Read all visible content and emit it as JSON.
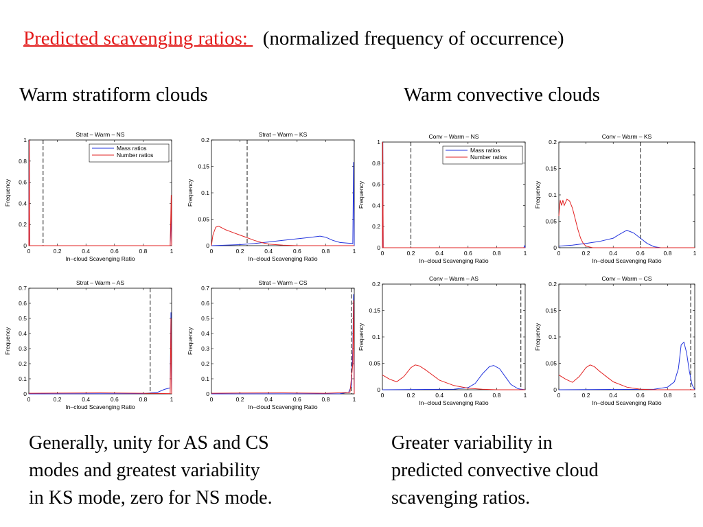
{
  "slide": {
    "title_red": "Predicted scavenging ratios: ",
    "title_rest": "(normalized frequency of occurrence)",
    "left_heading": "Warm stratiform clouds",
    "right_heading": "Warm convective clouds",
    "left_caption": [
      "Generally, unity for AS and CS",
      "modes and greatest variability",
      "in KS mode, zero for NS mode."
    ],
    "right_caption": [
      "Greater variability in",
      "predicted convective cloud",
      "scavenging ratios."
    ]
  },
  "colors": {
    "mass": "#2233dd",
    "number": "#e22222",
    "title_red": "#e31b1b"
  },
  "chart_data": [
    {
      "type": "line",
      "title": "Strat – Warm – NS",
      "xlabel": "In–cloud Scavenging Ratio",
      "ylabel": "Frequency",
      "xlim": [
        0,
        1
      ],
      "ylim": [
        0,
        1
      ],
      "xticks": [
        0,
        0.2,
        0.4,
        0.6,
        0.8,
        1
      ],
      "xtick_labels": [
        "0",
        "0.2",
        "0.4",
        "0.6",
        "0.8",
        "1"
      ],
      "yticks": [
        0,
        0.2,
        0.4,
        0.6,
        0.8,
        1
      ],
      "ytick_labels": [
        "0",
        "0.2",
        "0.4",
        "0.6",
        "0.8",
        "1"
      ],
      "threshold": 0.1,
      "legend": {
        "position": "top-right",
        "entries": [
          "Mass ratios",
          "Number ratios"
        ]
      },
      "series": [
        {
          "name": "Mass ratios",
          "x": [
            0,
            0.003,
            0.006,
            0.5,
            0.99,
            0.997,
            1
          ],
          "y": [
            0,
            1,
            0,
            0,
            0,
            0.3,
            0
          ]
        },
        {
          "name": "Number ratios",
          "x": [
            0,
            0.003,
            0.006,
            0.5,
            0.99,
            0.997,
            1
          ],
          "y": [
            0,
            1,
            0,
            0,
            0,
            0.48,
            0
          ]
        }
      ]
    },
    {
      "type": "line",
      "title": "Strat – Warm – KS",
      "xlabel": "In–cloud Scavenging Ratio",
      "ylabel": "Frequency",
      "xlim": [
        0,
        1
      ],
      "ylim": [
        0,
        0.2
      ],
      "xticks": [
        0,
        0.2,
        0.4,
        0.6,
        0.8,
        1
      ],
      "xtick_labels": [
        "0",
        "0.2",
        "0.4",
        "0.6",
        "0.8",
        "1"
      ],
      "yticks": [
        0,
        0.05,
        0.1,
        0.15,
        0.2
      ],
      "ytick_labels": [
        "0",
        "0.05",
        "0.1",
        "0.15",
        "0.2"
      ],
      "threshold": 0.25,
      "legend": null,
      "series": [
        {
          "name": "Mass ratios",
          "x": [
            0,
            0.1,
            0.2,
            0.3,
            0.4,
            0.5,
            0.6,
            0.7,
            0.76,
            0.8,
            0.85,
            0.9,
            0.95,
            0.99,
            0.995,
            1
          ],
          "y": [
            0,
            0.001,
            0.002,
            0.004,
            0.007,
            0.01,
            0.013,
            0.016,
            0.018,
            0.016,
            0.01,
            0.006,
            0.005,
            0.004,
            0.158,
            0
          ]
        },
        {
          "name": "Number ratios",
          "x": [
            0,
            0.01,
            0.03,
            0.05,
            0.1,
            0.15,
            0.2,
            0.25,
            0.3,
            0.35,
            0.4,
            0.5,
            0.6,
            1
          ],
          "y": [
            0,
            0.02,
            0.035,
            0.037,
            0.03,
            0.025,
            0.02,
            0.015,
            0.01,
            0.006,
            0.003,
            0.001,
            0,
            0
          ]
        }
      ]
    },
    {
      "type": "line",
      "title": "Strat – Warm – AS",
      "xlabel": "In–cloud Scavenging Ratio",
      "ylabel": "Frequency",
      "xlim": [
        0,
        1
      ],
      "ylim": [
        0,
        0.7
      ],
      "xticks": [
        0,
        0.2,
        0.4,
        0.6,
        0.8,
        1
      ],
      "xtick_labels": [
        "0",
        "0.2",
        "0.4",
        "0.6",
        "0.8",
        "1"
      ],
      "yticks": [
        0,
        0.1,
        0.2,
        0.3,
        0.4,
        0.5,
        0.6,
        0.7
      ],
      "ytick_labels": [
        "0",
        "0.1",
        "0.2",
        "0.3",
        "0.4",
        "0.5",
        "0.6",
        "0.7"
      ],
      "threshold": 0.85,
      "legend": null,
      "series": [
        {
          "name": "Mass ratios",
          "x": [
            0,
            0.8,
            0.9,
            0.95,
            0.99,
            0.995,
            1
          ],
          "y": [
            0,
            0.002,
            0.01,
            0.03,
            0.04,
            0.54,
            0
          ]
        },
        {
          "name": "Number ratios",
          "x": [
            0,
            0.2,
            0.5,
            0.8,
            0.99,
            0.995,
            1
          ],
          "y": [
            0.004,
            0.005,
            0.007,
            0.004,
            0.002,
            0.5,
            0
          ]
        }
      ]
    },
    {
      "type": "line",
      "title": "Strat – Warm – CS",
      "xlabel": "In–cloud Scavenging Ratio",
      "ylabel": "Frequency",
      "xlim": [
        0,
        1
      ],
      "ylim": [
        0,
        0.7
      ],
      "xticks": [
        0,
        0.2,
        0.4,
        0.6,
        0.8,
        1
      ],
      "xtick_labels": [
        "0",
        "0.2",
        "0.4",
        "0.6",
        "0.8",
        "1"
      ],
      "yticks": [
        0,
        0.1,
        0.2,
        0.3,
        0.4,
        0.5,
        0.6,
        0.7
      ],
      "ytick_labels": [
        "0",
        "0.1",
        "0.2",
        "0.3",
        "0.4",
        "0.5",
        "0.6",
        "0.7"
      ],
      "threshold": 0.98,
      "legend": null,
      "series": [
        {
          "name": "Mass ratios",
          "x": [
            0,
            0.9,
            0.96,
            0.98,
            0.99,
            0.995,
            1
          ],
          "y": [
            0,
            0.001,
            0.01,
            0.05,
            0.3,
            0.66,
            0
          ]
        },
        {
          "name": "Number ratios",
          "x": [
            0,
            0.2,
            0.5,
            0.8,
            0.97,
            0.99,
            0.995,
            1
          ],
          "y": [
            0.004,
            0.006,
            0.007,
            0.004,
            0.01,
            0.2,
            0.62,
            0
          ]
        }
      ]
    },
    {
      "type": "line",
      "title": "Conv – Warm – NS",
      "xlabel": "In–cloud Scavenging Ratio",
      "ylabel": "Frequency",
      "xlim": [
        0,
        1
      ],
      "ylim": [
        0,
        1
      ],
      "xticks": [
        0,
        0.2,
        0.4,
        0.6,
        0.8,
        1
      ],
      "xtick_labels": [
        "0",
        "0.2",
        "0.4",
        "0.6",
        "0.8",
        "1"
      ],
      "yticks": [
        0,
        0.2,
        0.4,
        0.6,
        0.8,
        1
      ],
      "ytick_labels": [
        "0",
        "0.2",
        "0.4",
        "0.6",
        "0.8",
        "1"
      ],
      "threshold": 0.2,
      "legend": {
        "position": "top-right",
        "entries": [
          "Mass ratios",
          "Number ratios"
        ]
      },
      "series": [
        {
          "name": "Mass ratios",
          "x": [
            0,
            0.003,
            0.006,
            0.5,
            0.99,
            0.997,
            1
          ],
          "y": [
            0,
            1,
            0,
            0,
            0,
            0.02,
            0
          ]
        },
        {
          "name": "Number ratios",
          "x": [
            0,
            0.003,
            0.006,
            0.5,
            1
          ],
          "y": [
            0,
            1,
            0,
            0,
            0
          ]
        }
      ]
    },
    {
      "type": "line",
      "title": "Conv – Warm – KS",
      "xlabel": "In–cloud Scavenging Ratio",
      "ylabel": "Frequency",
      "xlim": [
        0,
        1
      ],
      "ylim": [
        0,
        0.2
      ],
      "xticks": [
        0,
        0.2,
        0.4,
        0.6,
        0.8,
        1
      ],
      "xtick_labels": [
        "0",
        "0.2",
        "0.4",
        "0.6",
        "0.8",
        "1"
      ],
      "yticks": [
        0,
        0.05,
        0.1,
        0.15,
        0.2
      ],
      "ytick_labels": [
        "0",
        "0.05",
        "0.1",
        "0.15",
        "0.2"
      ],
      "threshold": 0.6,
      "legend": null,
      "series": [
        {
          "name": "Mass ratios",
          "x": [
            0,
            0.1,
            0.2,
            0.3,
            0.4,
            0.45,
            0.5,
            0.55,
            0.6,
            0.65,
            0.7,
            0.75,
            0.8,
            1
          ],
          "y": [
            0.003,
            0.005,
            0.008,
            0.012,
            0.018,
            0.026,
            0.033,
            0.028,
            0.018,
            0.008,
            0.002,
            0,
            0,
            0
          ]
        },
        {
          "name": "Number ratios",
          "x": [
            0,
            0.01,
            0.02,
            0.03,
            0.04,
            0.06,
            0.08,
            0.1,
            0.12,
            0.14,
            0.16,
            0.18,
            0.2,
            0.25,
            1
          ],
          "y": [
            0.06,
            0.09,
            0.08,
            0.09,
            0.08,
            0.092,
            0.088,
            0.075,
            0.055,
            0.035,
            0.018,
            0.008,
            0.003,
            0,
            0
          ]
        }
      ]
    },
    {
      "type": "line",
      "title": "Conv – Warm – AS",
      "xlabel": "In–cloud Scavenging Ratio",
      "ylabel": "Frequency",
      "xlim": [
        0,
        1
      ],
      "ylim": [
        0,
        0.2
      ],
      "xticks": [
        0,
        0.2,
        0.4,
        0.6,
        0.8,
        1
      ],
      "xtick_labels": [
        "0",
        "0.2",
        "0.4",
        "0.6",
        "0.8",
        "1"
      ],
      "yticks": [
        0,
        0.05,
        0.1,
        0.15,
        0.2
      ],
      "ytick_labels": [
        "0",
        "0.05",
        "0.1",
        "0.15",
        "0.2"
      ],
      "threshold": 0.97,
      "legend": null,
      "series": [
        {
          "name": "Mass ratios",
          "x": [
            0,
            0.5,
            0.6,
            0.65,
            0.7,
            0.75,
            0.78,
            0.82,
            0.86,
            0.9,
            0.95,
            1
          ],
          "y": [
            0,
            0.001,
            0.004,
            0.012,
            0.03,
            0.044,
            0.046,
            0.04,
            0.025,
            0.01,
            0.002,
            0
          ]
        },
        {
          "name": "Number ratios",
          "x": [
            0,
            0.05,
            0.1,
            0.15,
            0.2,
            0.23,
            0.26,
            0.3,
            0.35,
            0.4,
            0.5,
            0.6,
            0.7,
            0.8,
            1
          ],
          "y": [
            0.028,
            0.02,
            0.015,
            0.025,
            0.042,
            0.047,
            0.045,
            0.038,
            0.028,
            0.018,
            0.008,
            0.003,
            0.001,
            0,
            0
          ]
        }
      ]
    },
    {
      "type": "line",
      "title": "Conv – Warm – CS",
      "xlabel": "In–cloud Scavenging Ratio",
      "ylabel": "Frequency",
      "xlim": [
        0,
        1
      ],
      "ylim": [
        0,
        0.2
      ],
      "xticks": [
        0,
        0.2,
        0.4,
        0.6,
        0.8,
        1
      ],
      "xtick_labels": [
        "0",
        "0.2",
        "0.4",
        "0.6",
        "0.8",
        "1"
      ],
      "yticks": [
        0,
        0.05,
        0.1,
        0.15,
        0.2
      ],
      "ytick_labels": [
        "0",
        "0.05",
        "0.1",
        "0.15",
        "0.2"
      ],
      "threshold": 0.97,
      "legend": null,
      "series": [
        {
          "name": "Mass ratios",
          "x": [
            0,
            0.7,
            0.8,
            0.85,
            0.88,
            0.9,
            0.92,
            0.94,
            0.96,
            0.98,
            1
          ],
          "y": [
            0,
            0.001,
            0.005,
            0.015,
            0.04,
            0.085,
            0.09,
            0.07,
            0.035,
            0.01,
            0
          ]
        },
        {
          "name": "Number ratios",
          "x": [
            0,
            0.05,
            0.1,
            0.15,
            0.2,
            0.23,
            0.26,
            0.3,
            0.35,
            0.4,
            0.5,
            0.6,
            0.7,
            1
          ],
          "y": [
            0.028,
            0.02,
            0.014,
            0.025,
            0.042,
            0.047,
            0.044,
            0.035,
            0.025,
            0.015,
            0.005,
            0.001,
            0,
            0
          ]
        }
      ]
    }
  ]
}
